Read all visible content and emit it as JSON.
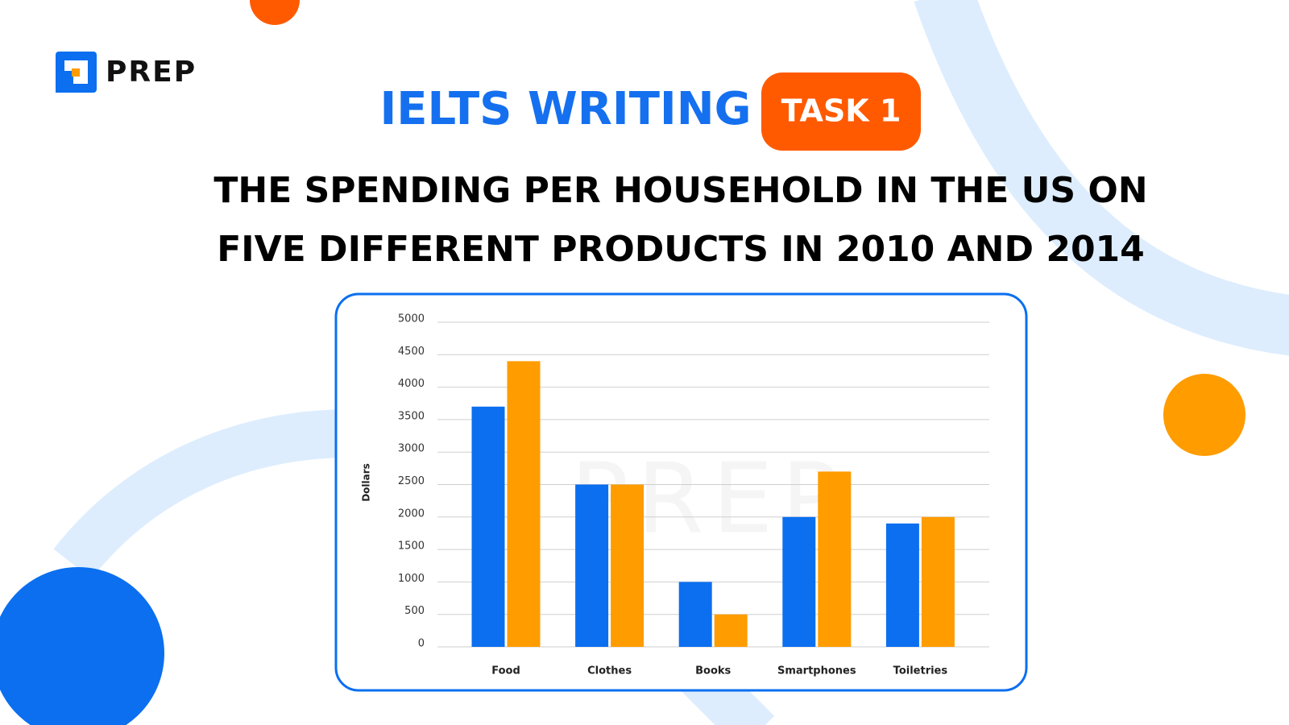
{
  "header": {
    "logo": "PREP",
    "heading": "IELTS WRITING",
    "badge": "TASK 1",
    "title": [
      "THE SPENDING PER HOUSEHOLD IN THE US ON",
      "FIVE DIFFERENT PRODUCTS IN 2010 AND 2014"
    ]
  },
  "chart_data": {
    "type": "bar",
    "y_label": "Dollars",
    "categories": [
      "Food",
      "Clothes",
      "Books",
      "Smartphones",
      "Toiletries"
    ],
    "series": [
      {
        "color": "#0b6ff0",
        "values": [
          3700,
          2500,
          1000,
          2000,
          1900
        ]
      },
      {
        "color": "#ff9c00",
        "values": [
          4400,
          2500,
          500,
          2700,
          2000
        ]
      }
    ],
    "ylim": [
      0,
      5000
    ],
    "yticks": [
      0,
      500,
      1000,
      1500,
      2000,
      2500,
      3000,
      3500,
      4000,
      4500,
      5000
    ],
    "grid": true
  }
}
